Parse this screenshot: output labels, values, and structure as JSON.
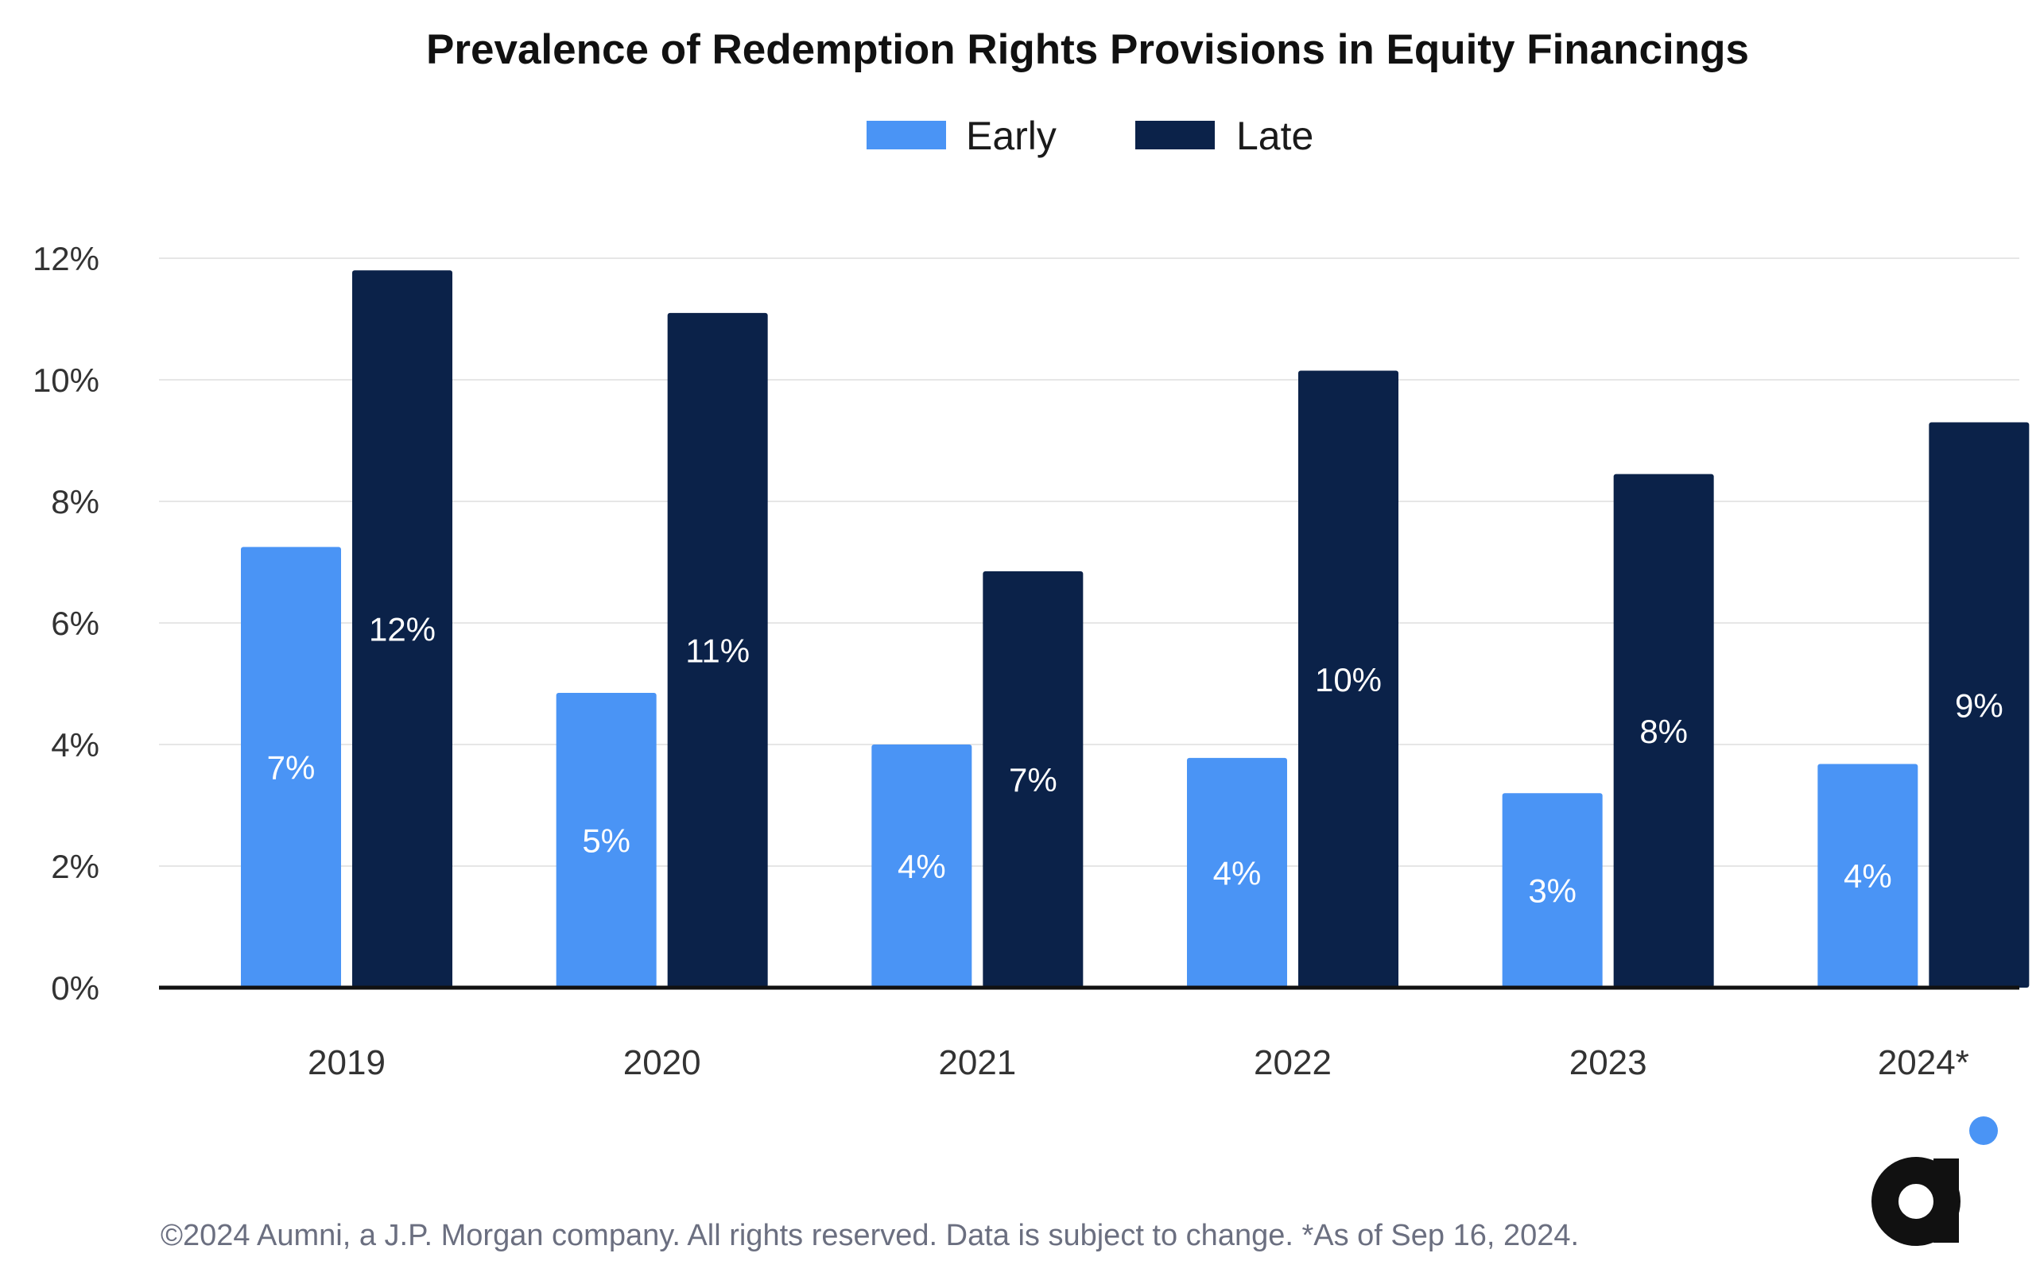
{
  "colors": {
    "early": "#4A94F5",
    "late": "#0B2249",
    "grid": "#e6e6e6",
    "axis": "#111111",
    "logo_dot": "#4A94F5",
    "logo_mark": "#111111"
  },
  "legend": {
    "early_label": "Early",
    "late_label": "Late"
  },
  "footnote": "©2024 Aumni, a J.P. Morgan company. All rights reserved. Data is subject to change. *As of Sep 16, 2024.",
  "logo": {
    "icon": "aumni-logo-icon"
  },
  "chart_data": {
    "type": "bar",
    "title": "Prevalence of Redemption Rights Provisions in Equity Financings",
    "xlabel": "",
    "ylabel": "",
    "categories": [
      "2019",
      "2020",
      "2021",
      "2022",
      "2023",
      "2024*"
    ],
    "ylim": [
      0,
      12
    ],
    "yticks": [
      0,
      2,
      4,
      6,
      8,
      10,
      12
    ],
    "ytick_labels": [
      "0%",
      "2%",
      "4%",
      "6%",
      "8%",
      "10%",
      "12%"
    ],
    "grid": true,
    "legend_position": "top-center",
    "series": [
      {
        "name": "Early",
        "values": [
          7.25,
          4.85,
          4.0,
          3.78,
          3.2,
          3.68
        ],
        "labels": [
          "7%",
          "5%",
          "4%",
          "4%",
          "3%",
          "4%"
        ]
      },
      {
        "name": "Late",
        "values": [
          11.8,
          11.1,
          6.85,
          10.15,
          8.45,
          9.3
        ],
        "labels": [
          "12%",
          "11%",
          "7%",
          "10%",
          "8%",
          "9%"
        ]
      }
    ]
  }
}
